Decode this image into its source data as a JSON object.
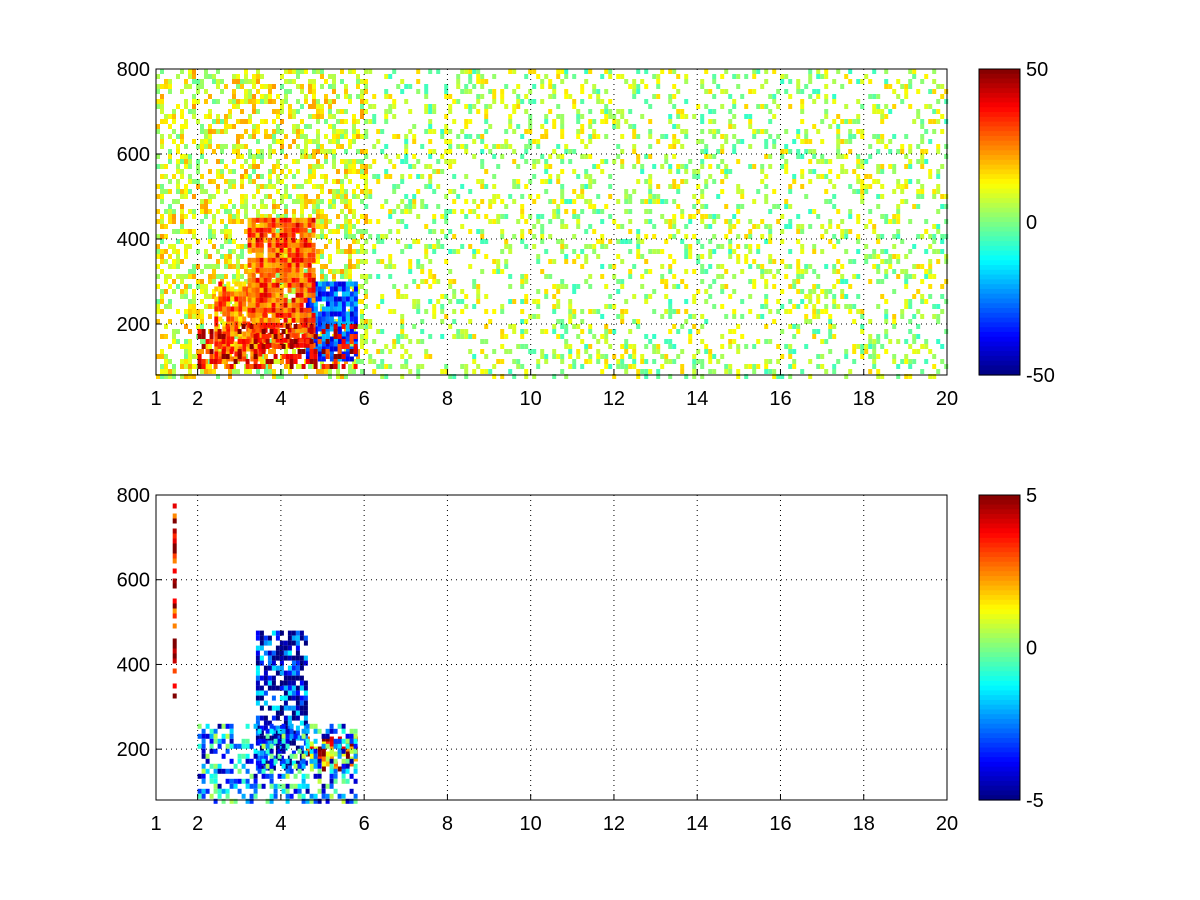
{
  "chart_data": [
    {
      "type": "heatmap",
      "title": "",
      "xlabel": "",
      "ylabel": "",
      "xlim": [
        1,
        20
      ],
      "ylim": [
        80,
        800
      ],
      "x_ticks": [
        1,
        2,
        4,
        6,
        8,
        10,
        12,
        14,
        16,
        18,
        20
      ],
      "y_ticks": [
        200,
        400,
        600,
        800
      ],
      "grid": true,
      "colormap": "jet",
      "colorbar": {
        "min": -50,
        "max": 50,
        "ticks": [
          50,
          0,
          -50
        ]
      },
      "regions": [
        {
          "x": [
            2.0,
            5.8
          ],
          "y": [
            100,
            200
          ],
          "value": 40
        },
        {
          "x": [
            3.2,
            4.8
          ],
          "y": [
            150,
            450
          ],
          "value": 30
        },
        {
          "x": [
            2.4,
            3.6
          ],
          "y": [
            120,
            300
          ],
          "value": 25
        },
        {
          "x": [
            4.6,
            5.8
          ],
          "y": [
            120,
            300
          ],
          "value": -30
        },
        {
          "x": [
            1.0,
            6.0
          ],
          "y": [
            80,
            800
          ],
          "value": 10
        },
        {
          "x": [
            6.0,
            20.0
          ],
          "y": [
            80,
            800
          ],
          "value": 5
        }
      ]
    },
    {
      "type": "heatmap",
      "title": "",
      "xlabel": "",
      "ylabel": "",
      "xlim": [
        1,
        20
      ],
      "ylim": [
        80,
        800
      ],
      "x_ticks": [
        1,
        2,
        4,
        6,
        8,
        10,
        12,
        14,
        16,
        18,
        20
      ],
      "y_ticks": [
        200,
        400,
        600,
        800
      ],
      "grid": true,
      "colormap": "jet",
      "colorbar": {
        "min": -5,
        "max": 5,
        "ticks": [
          5,
          0,
          -5
        ]
      },
      "regions": [
        {
          "x": [
            2.0,
            5.8
          ],
          "y": [
            80,
            260
          ],
          "value": -2
        },
        {
          "x": [
            3.4,
            4.6
          ],
          "y": [
            150,
            480
          ],
          "value": -4
        },
        {
          "x": [
            4.6,
            5.8
          ],
          "y": [
            150,
            230
          ],
          "value": 3
        },
        {
          "x": [
            1.4,
            1.45
          ],
          "y": [
            330,
            780
          ],
          "value": 5
        }
      ]
    }
  ]
}
